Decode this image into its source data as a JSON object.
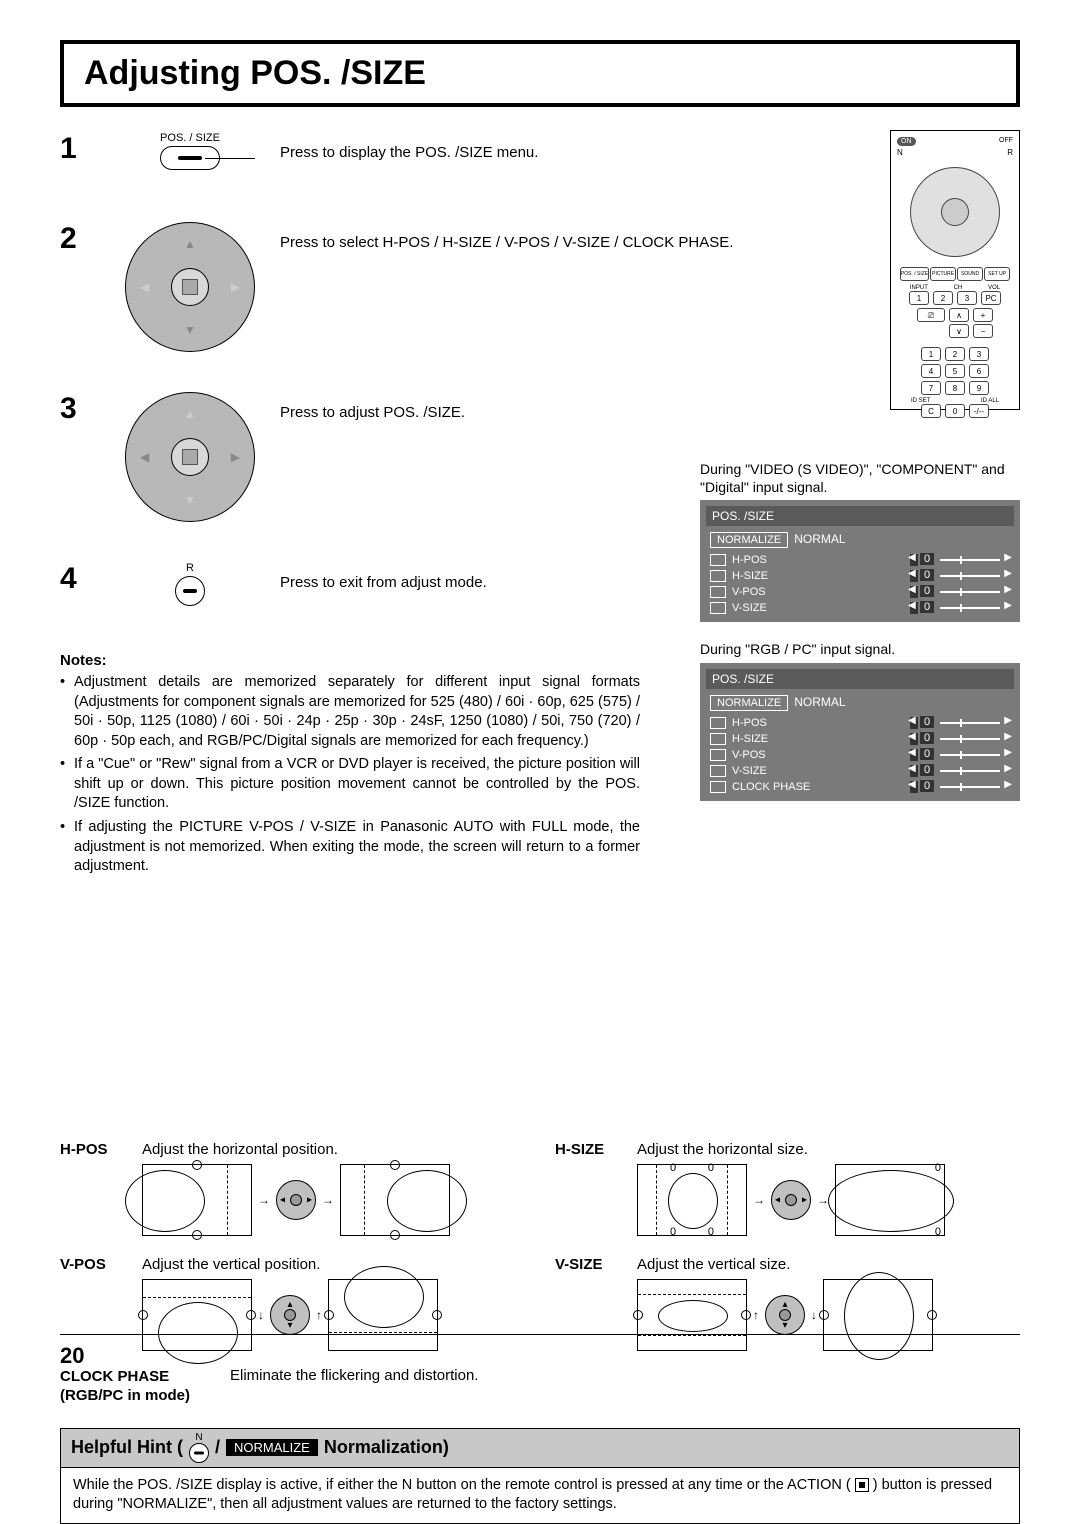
{
  "page": {
    "title": "Adjusting POS. /SIZE",
    "page_number": "20"
  },
  "steps": [
    {
      "num": "1",
      "icon_label": "POS. / SIZE",
      "text": "Press to display the POS. /SIZE menu."
    },
    {
      "num": "2",
      "icon_label": "",
      "text": "Press to select H-POS / H-SIZE / V-POS / V-SIZE / CLOCK PHASE."
    },
    {
      "num": "3",
      "icon_label": "",
      "text": "Press to adjust POS. /SIZE."
    },
    {
      "num": "4",
      "icon_label": "R",
      "text": "Press to exit from adjust mode."
    }
  ],
  "notes": {
    "heading": "Notes:",
    "items": [
      "Adjustment details are memorized separately for different input signal formats (Adjustments for component signals are memorized for 525 (480) / 60i · 60p, 625 (575) / 50i · 50p, 1125 (1080) / 60i · 50i · 24p · 25p · 30p · 24sF, 1250 (1080) / 50i, 750 (720) / 60p · 50p each, and RGB/PC/Digital signals are memorized for each frequency.)",
      "If a \"Cue\" or \"Rew\" signal from a VCR or DVD player is received, the picture position will shift up or down. This picture position movement cannot be controlled by the POS. /SIZE function.",
      "If adjusting the PICTURE V-POS / V-SIZE in Panasonic AUTO with FULL mode, the adjustment is not memorized. When exiting the mode, the screen will return to a former adjustment."
    ]
  },
  "remote": {
    "on": "ON",
    "off": "OFF",
    "labels_row": [
      "POS. / SIZE",
      "PICTURE",
      "SOUND",
      "SET UP"
    ],
    "input_label": "INPUT",
    "ch_label": "CH",
    "vol_label": "VOL",
    "nums_1": [
      "1",
      "2",
      "3",
      "PC"
    ],
    "ch_up": "∧",
    "ch_dn": "∨",
    "vol_up": "+",
    "vol_dn": "−",
    "keypad": [
      [
        "1",
        "2",
        "3"
      ],
      [
        "4",
        "5",
        "6"
      ],
      [
        "7",
        "8",
        "9"
      ],
      [
        "C",
        "0",
        "-/--"
      ]
    ],
    "id_set": "ID SET",
    "id_all": "ID ALL"
  },
  "osd1": {
    "caption": "During \"VIDEO (S VIDEO)\", \"COMPONENT\" and \"Digital\" input signal.",
    "title": "POS. /SIZE",
    "normalize": "NORMALIZE",
    "normal": "NORMAL",
    "rows": [
      {
        "label": "H-POS",
        "value": "0"
      },
      {
        "label": "H-SIZE",
        "value": "0"
      },
      {
        "label": "V-POS",
        "value": "0"
      },
      {
        "label": "V-SIZE",
        "value": "0"
      }
    ]
  },
  "osd2": {
    "caption": "During \"RGB / PC\" input signal.",
    "title": "POS. /SIZE",
    "normalize": "NORMALIZE",
    "normal": "NORMAL",
    "rows": [
      {
        "label": "H-POS",
        "value": "0"
      },
      {
        "label": "H-SIZE",
        "value": "0"
      },
      {
        "label": "V-POS",
        "value": "0"
      },
      {
        "label": "V-SIZE",
        "value": "0"
      },
      {
        "label": "CLOCK PHASE",
        "value": "0"
      }
    ]
  },
  "adjustments": {
    "hpos": {
      "label": "H-POS",
      "desc": "Adjust the horizontal position."
    },
    "hsize": {
      "label": "H-SIZE",
      "desc": "Adjust the horizontal size."
    },
    "vpos": {
      "label": "V-POS",
      "desc": "Adjust the vertical position."
    },
    "vsize": {
      "label": "V-SIZE",
      "desc": "Adjust the vertical size."
    },
    "clock": {
      "label": "CLOCK PHASE",
      "sublabel": "(RGB/PC in mode)",
      "desc": "Eliminate the flickering and distortion."
    }
  },
  "hint": {
    "prefix": "Helpful Hint (",
    "n_label": "N",
    "sep": " / ",
    "badge": "NORMALIZE",
    "suffix": " Normalization)",
    "body_1": "While the POS. /SIZE display is active, if either the N button on the remote control is pressed at any time or the ACTION (",
    "body_2": ") button is pressed during \"NORMALIZE\", then all adjustment values are returned to the factory settings."
  },
  "colors": {
    "osd_bg": "#7a7a7a",
    "osd_header": "#5a5a5a",
    "dpad_fill": "#b8b8b8",
    "hint_bg": "#c8c8c8"
  }
}
